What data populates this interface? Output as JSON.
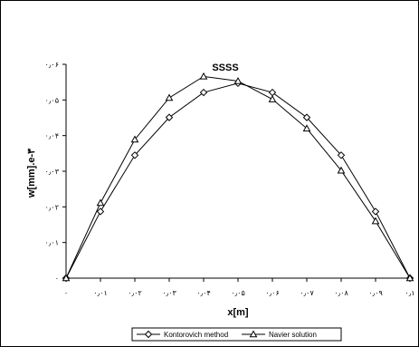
{
  "chart_data": {
    "type": "line",
    "title": "SSSS",
    "xlabel": "x[m]",
    "ylabel": "w[mm].e-۳",
    "x": [
      0,
      0.01,
      0.02,
      0.03,
      0.04,
      0.05,
      0.06,
      0.07,
      0.08,
      0.09,
      0.1
    ],
    "xlim": [
      0,
      0.1
    ],
    "ylim": [
      0,
      0.06
    ],
    "xtick_labels": [
      "۰",
      "۰٫۰۱",
      "۰٫۰۲",
      "۰٫۰۳",
      "۰٫۰۴",
      "۰٫۰۵",
      "۰٫۰۶",
      "۰٫۰۷",
      "۰٫۰۸",
      "۰٫۰۹",
      "۰٫۱"
    ],
    "ytick_values": [
      0,
      0.01,
      0.02,
      0.03,
      0.04,
      0.05,
      0.06
    ],
    "ytick_labels": [
      "۰",
      "۰٫۰۱",
      "۰٫۰۲",
      "۰٫۰۳",
      "۰٫۰۴",
      "۰٫۰۵",
      "۰٫۰۶"
    ],
    "grid": false,
    "legend_position": "bottom-center",
    "series": [
      {
        "name": "Kontorovich method",
        "marker": "diamond",
        "values": [
          0,
          0.0187,
          0.0345,
          0.0451,
          0.0521,
          0.0547,
          0.0521,
          0.0451,
          0.0345,
          0.0187,
          0
        ]
      },
      {
        "name": "Navier solution",
        "marker": "triangle",
        "values": [
          0,
          0.0211,
          0.0389,
          0.0506,
          0.0566,
          0.0553,
          0.0502,
          0.042,
          0.0302,
          0.016,
          0
        ]
      }
    ]
  }
}
